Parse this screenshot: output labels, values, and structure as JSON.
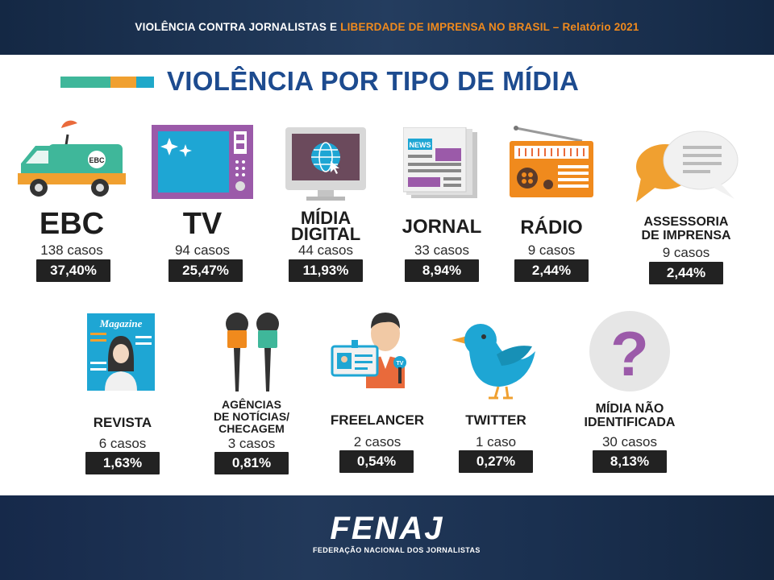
{
  "header": {
    "part1": "VIOLÊNCIA CONTRA JORNALISTAS E ",
    "part2": "LIBERDADE DE IMPRENSA NO BRASIL – Relatório 2021"
  },
  "title": "VIOLÊNCIA POR TIPO DE MÍDIA",
  "colors": {
    "navy": "#1b2f4e",
    "title": "#1d4b8f",
    "accent": "#f08a1d",
    "teal": "#3fb79a",
    "orange": "#f0a030",
    "blue": "#1fa8c9"
  },
  "items": [
    {
      "id": "ebc",
      "label": "EBC",
      "cases": "138 casos",
      "pct": "37,40%",
      "icon": "van-icon",
      "icon_text": "EBC"
    },
    {
      "id": "tv",
      "label": "TV",
      "cases": "94 casos",
      "pct": "25,47%",
      "icon": "tv-icon"
    },
    {
      "id": "digital",
      "label1": "MÍDIA",
      "label2": "DIGITAL",
      "cases": "44 casos",
      "pct": "11,93%",
      "icon": "monitor-globe-icon"
    },
    {
      "id": "jornal",
      "label": "JORNAL",
      "cases": "33 casos",
      "pct": "8,94%",
      "icon": "newspaper-icon",
      "icon_text": "NEWS"
    },
    {
      "id": "radio",
      "label": "RÁDIO",
      "cases": "9 casos",
      "pct": "2,44%",
      "icon": "radio-icon"
    },
    {
      "id": "assessoria",
      "label1": "ASSESSORIA",
      "label2": "DE IMPRENSA",
      "cases": "9 casos",
      "pct": "2,44%",
      "icon": "speech-bubbles-icon"
    },
    {
      "id": "revista",
      "label": "REVISTA",
      "cases": "6 casos",
      "pct": "1,63%",
      "icon": "magazine-icon",
      "icon_text": "Magazine"
    },
    {
      "id": "agencias",
      "label1": "AGÊNCIAS",
      "label2": "DE NOTÍCIAS/",
      "label3": "CHECAGEM",
      "cases": "3 casos",
      "pct": "0,81%",
      "icon": "microphones-icon"
    },
    {
      "id": "freelancer",
      "label": "FREELANCER",
      "cases": "2 casos",
      "pct": "0,54%",
      "icon": "reporter-icon",
      "icon_text": "TV"
    },
    {
      "id": "twitter",
      "label": "TWITTER",
      "cases": "1 caso",
      "pct": "0,27%",
      "icon": "bird-icon"
    },
    {
      "id": "nao-identificada",
      "label1": "MÍDIA NÃO",
      "label2": "IDENTIFICADA",
      "cases": "30 casos",
      "pct": "8,13%",
      "icon": "question-icon",
      "icon_text": "?"
    }
  ],
  "logo": {
    "word": "FENAJ",
    "subtitle": "FEDERAÇÃO NACIONAL DOS JORNALISTAS"
  }
}
